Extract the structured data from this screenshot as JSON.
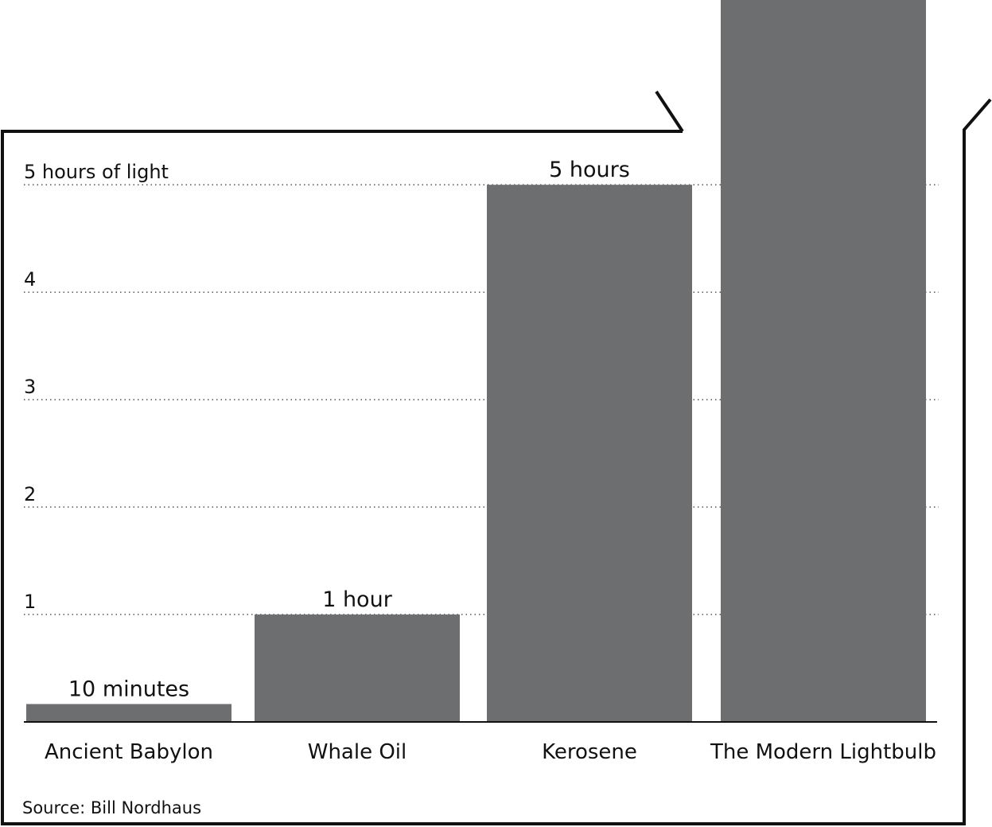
{
  "chart_data": {
    "type": "bar",
    "categories": [
      "Ancient Babylon",
      "Whale Oil",
      "Kerosene",
      "The Modern Lightbulb"
    ],
    "values": [
      0.1667,
      1,
      5,
      6.72
    ],
    "value_labels": [
      "10 minutes",
      "1 hour",
      "5 hours",
      null
    ],
    "color": "#6d6e70",
    "ylim": [
      0,
      6.72
    ],
    "yticks": [
      1,
      2,
      3,
      4,
      {
        "value": 5,
        "label": "5 hours of light"
      }
    ],
    "grid": true,
    "source": "Source: Bill Nordhaus"
  }
}
